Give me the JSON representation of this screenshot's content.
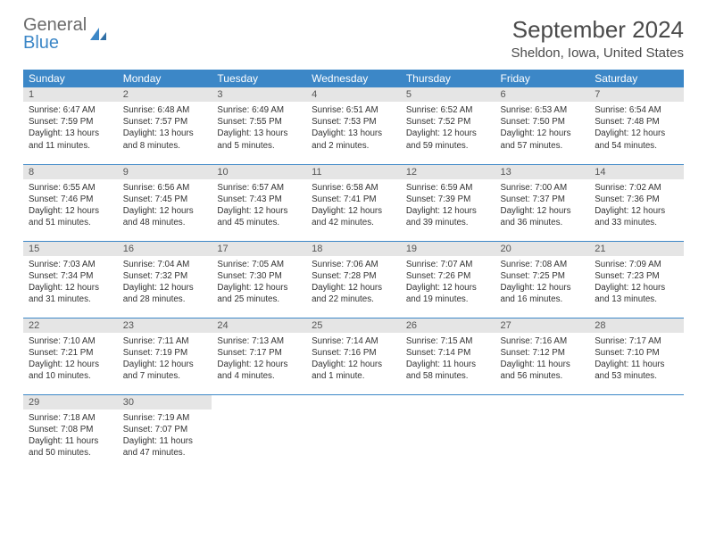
{
  "logo": {
    "text_gray": "General",
    "text_blue": "Blue"
  },
  "title": "September 2024",
  "location": "Sheldon, Iowa, United States",
  "colors": {
    "header_bg": "#3c87c7",
    "header_text": "#ffffff",
    "daynum_bg": "#e5e5e5",
    "border": "#3c87c7",
    "body_text": "#333333",
    "title_text": "#4a4a4a"
  },
  "day_header_labels": [
    "Sunday",
    "Monday",
    "Tuesday",
    "Wednesday",
    "Thursday",
    "Friday",
    "Saturday"
  ],
  "weeks": [
    [
      {
        "n": "1",
        "sr": "Sunrise: 6:47 AM",
        "ss": "Sunset: 7:59 PM",
        "dl": "Daylight: 13 hours and 11 minutes."
      },
      {
        "n": "2",
        "sr": "Sunrise: 6:48 AM",
        "ss": "Sunset: 7:57 PM",
        "dl": "Daylight: 13 hours and 8 minutes."
      },
      {
        "n": "3",
        "sr": "Sunrise: 6:49 AM",
        "ss": "Sunset: 7:55 PM",
        "dl": "Daylight: 13 hours and 5 minutes."
      },
      {
        "n": "4",
        "sr": "Sunrise: 6:51 AM",
        "ss": "Sunset: 7:53 PM",
        "dl": "Daylight: 13 hours and 2 minutes."
      },
      {
        "n": "5",
        "sr": "Sunrise: 6:52 AM",
        "ss": "Sunset: 7:52 PM",
        "dl": "Daylight: 12 hours and 59 minutes."
      },
      {
        "n": "6",
        "sr": "Sunrise: 6:53 AM",
        "ss": "Sunset: 7:50 PM",
        "dl": "Daylight: 12 hours and 57 minutes."
      },
      {
        "n": "7",
        "sr": "Sunrise: 6:54 AM",
        "ss": "Sunset: 7:48 PM",
        "dl": "Daylight: 12 hours and 54 minutes."
      }
    ],
    [
      {
        "n": "8",
        "sr": "Sunrise: 6:55 AM",
        "ss": "Sunset: 7:46 PM",
        "dl": "Daylight: 12 hours and 51 minutes."
      },
      {
        "n": "9",
        "sr": "Sunrise: 6:56 AM",
        "ss": "Sunset: 7:45 PM",
        "dl": "Daylight: 12 hours and 48 minutes."
      },
      {
        "n": "10",
        "sr": "Sunrise: 6:57 AM",
        "ss": "Sunset: 7:43 PM",
        "dl": "Daylight: 12 hours and 45 minutes."
      },
      {
        "n": "11",
        "sr": "Sunrise: 6:58 AM",
        "ss": "Sunset: 7:41 PM",
        "dl": "Daylight: 12 hours and 42 minutes."
      },
      {
        "n": "12",
        "sr": "Sunrise: 6:59 AM",
        "ss": "Sunset: 7:39 PM",
        "dl": "Daylight: 12 hours and 39 minutes."
      },
      {
        "n": "13",
        "sr": "Sunrise: 7:00 AM",
        "ss": "Sunset: 7:37 PM",
        "dl": "Daylight: 12 hours and 36 minutes."
      },
      {
        "n": "14",
        "sr": "Sunrise: 7:02 AM",
        "ss": "Sunset: 7:36 PM",
        "dl": "Daylight: 12 hours and 33 minutes."
      }
    ],
    [
      {
        "n": "15",
        "sr": "Sunrise: 7:03 AM",
        "ss": "Sunset: 7:34 PM",
        "dl": "Daylight: 12 hours and 31 minutes."
      },
      {
        "n": "16",
        "sr": "Sunrise: 7:04 AM",
        "ss": "Sunset: 7:32 PM",
        "dl": "Daylight: 12 hours and 28 minutes."
      },
      {
        "n": "17",
        "sr": "Sunrise: 7:05 AM",
        "ss": "Sunset: 7:30 PM",
        "dl": "Daylight: 12 hours and 25 minutes."
      },
      {
        "n": "18",
        "sr": "Sunrise: 7:06 AM",
        "ss": "Sunset: 7:28 PM",
        "dl": "Daylight: 12 hours and 22 minutes."
      },
      {
        "n": "19",
        "sr": "Sunrise: 7:07 AM",
        "ss": "Sunset: 7:26 PM",
        "dl": "Daylight: 12 hours and 19 minutes."
      },
      {
        "n": "20",
        "sr": "Sunrise: 7:08 AM",
        "ss": "Sunset: 7:25 PM",
        "dl": "Daylight: 12 hours and 16 minutes."
      },
      {
        "n": "21",
        "sr": "Sunrise: 7:09 AM",
        "ss": "Sunset: 7:23 PM",
        "dl": "Daylight: 12 hours and 13 minutes."
      }
    ],
    [
      {
        "n": "22",
        "sr": "Sunrise: 7:10 AM",
        "ss": "Sunset: 7:21 PM",
        "dl": "Daylight: 12 hours and 10 minutes."
      },
      {
        "n": "23",
        "sr": "Sunrise: 7:11 AM",
        "ss": "Sunset: 7:19 PM",
        "dl": "Daylight: 12 hours and 7 minutes."
      },
      {
        "n": "24",
        "sr": "Sunrise: 7:13 AM",
        "ss": "Sunset: 7:17 PM",
        "dl": "Daylight: 12 hours and 4 minutes."
      },
      {
        "n": "25",
        "sr": "Sunrise: 7:14 AM",
        "ss": "Sunset: 7:16 PM",
        "dl": "Daylight: 12 hours and 1 minute."
      },
      {
        "n": "26",
        "sr": "Sunrise: 7:15 AM",
        "ss": "Sunset: 7:14 PM",
        "dl": "Daylight: 11 hours and 58 minutes."
      },
      {
        "n": "27",
        "sr": "Sunrise: 7:16 AM",
        "ss": "Sunset: 7:12 PM",
        "dl": "Daylight: 11 hours and 56 minutes."
      },
      {
        "n": "28",
        "sr": "Sunrise: 7:17 AM",
        "ss": "Sunset: 7:10 PM",
        "dl": "Daylight: 11 hours and 53 minutes."
      }
    ],
    [
      {
        "n": "29",
        "sr": "Sunrise: 7:18 AM",
        "ss": "Sunset: 7:08 PM",
        "dl": "Daylight: 11 hours and 50 minutes."
      },
      {
        "n": "30",
        "sr": "Sunrise: 7:19 AM",
        "ss": "Sunset: 7:07 PM",
        "dl": "Daylight: 11 hours and 47 minutes."
      },
      {
        "empty": true
      },
      {
        "empty": true
      },
      {
        "empty": true
      },
      {
        "empty": true
      },
      {
        "empty": true
      }
    ]
  ]
}
